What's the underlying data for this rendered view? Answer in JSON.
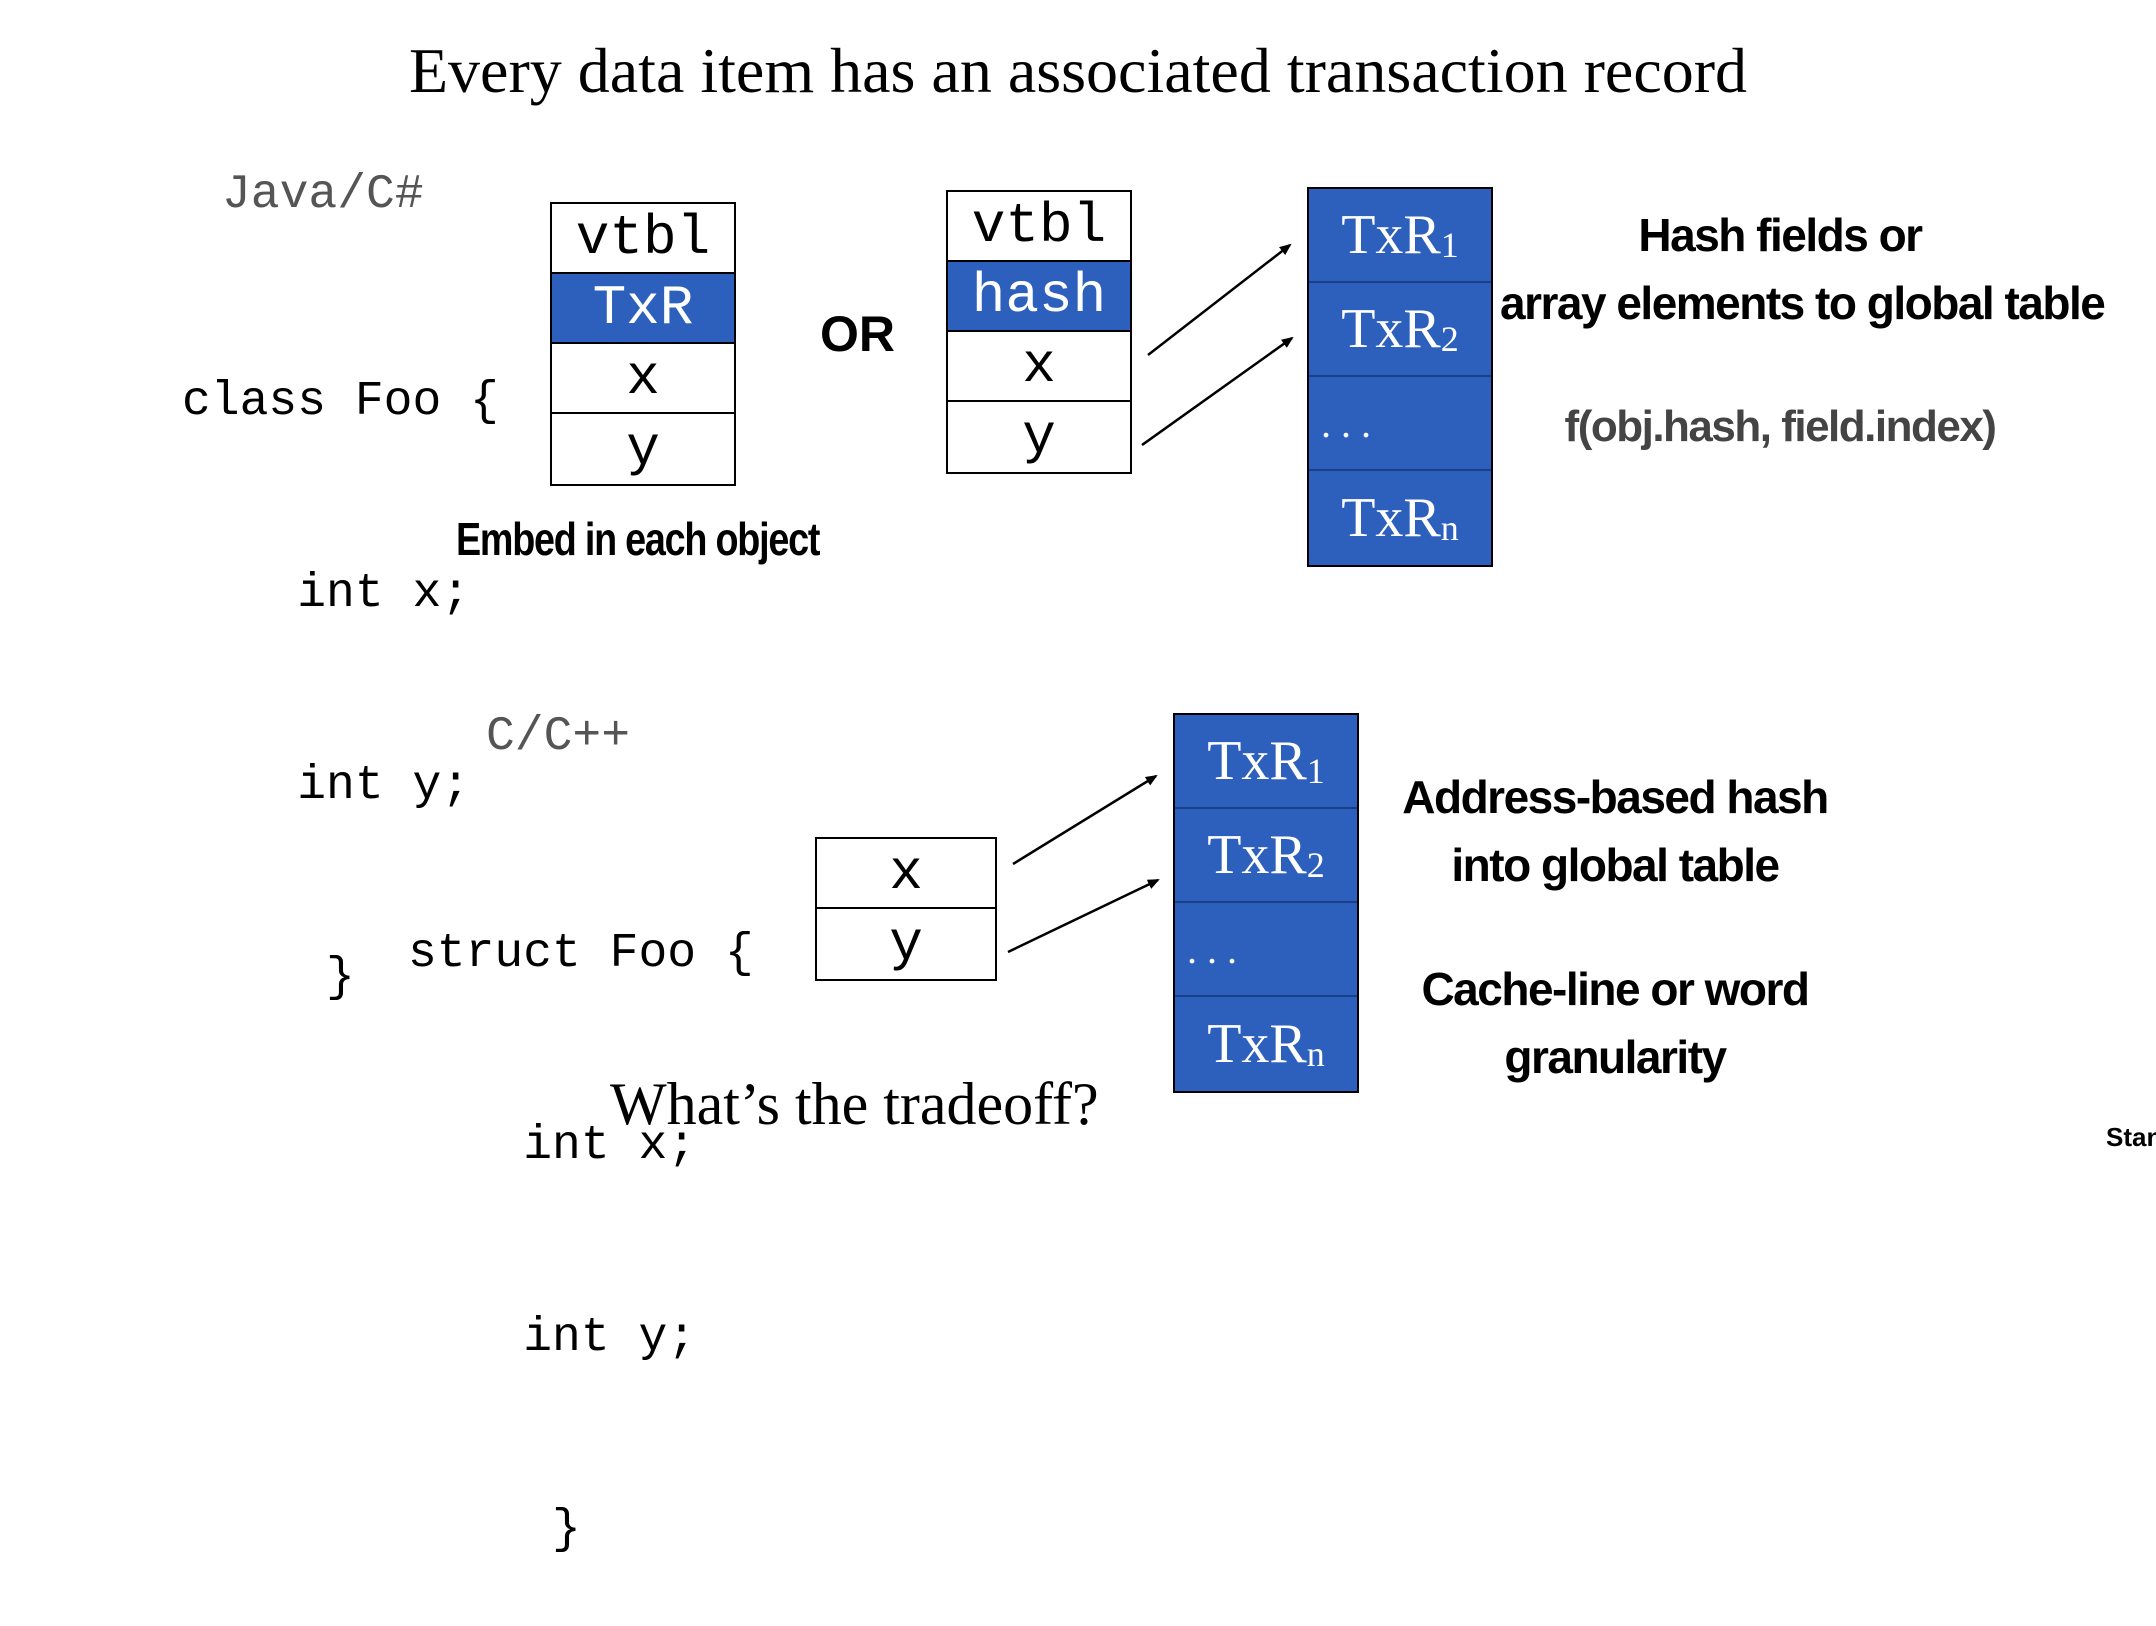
{
  "title": "Every data item has an associated transaction record",
  "java": {
    "lang_label": "Java/C#",
    "code": [
      "class Foo {",
      "    int x;",
      "    int y;",
      "     }"
    ],
    "embedded_object": {
      "cells": [
        "vtbl",
        "TxR",
        "x",
        "y"
      ],
      "highlight_index": 1
    },
    "embed_caption": "Embed in each object",
    "or_label": "OR",
    "hashed_object": {
      "cells": [
        "vtbl",
        "hash",
        "x",
        "y"
      ],
      "highlight_index": 1
    },
    "table": {
      "cells": [
        {
          "main": "TxR",
          "sub": "1"
        },
        {
          "main": "TxR",
          "sub": "2"
        },
        {
          "dots": ".     .     ."
        },
        {
          "main": "TxR",
          "sub": "n"
        }
      ]
    },
    "note_line1": "Hash fields or",
    "note_line2": "array elements to global table",
    "formula": "f(obj.hash, field.index)"
  },
  "c": {
    "lang_label": "C/C++",
    "code": [
      "struct Foo {",
      "    int x;",
      "    int y;",
      "     }"
    ],
    "object": {
      "cells": [
        "x",
        "y"
      ]
    },
    "table": {
      "cells": [
        {
          "main": "TxR",
          "sub": "1"
        },
        {
          "main": "TxR",
          "sub": "2"
        },
        {
          "dots": ".     .     ."
        },
        {
          "main": "TxR",
          "sub": "n"
        }
      ]
    },
    "note1_line1": "Address-based hash",
    "note1_line2": "into global table",
    "note2_line1": "Cache-line or word",
    "note2_line2": "granularity"
  },
  "question": "What’s the tradeoff?",
  "footer": "Stanf",
  "colors": {
    "accent_blue": "#2d5fbd",
    "border": "#000000",
    "lang_gray": "#555555"
  }
}
